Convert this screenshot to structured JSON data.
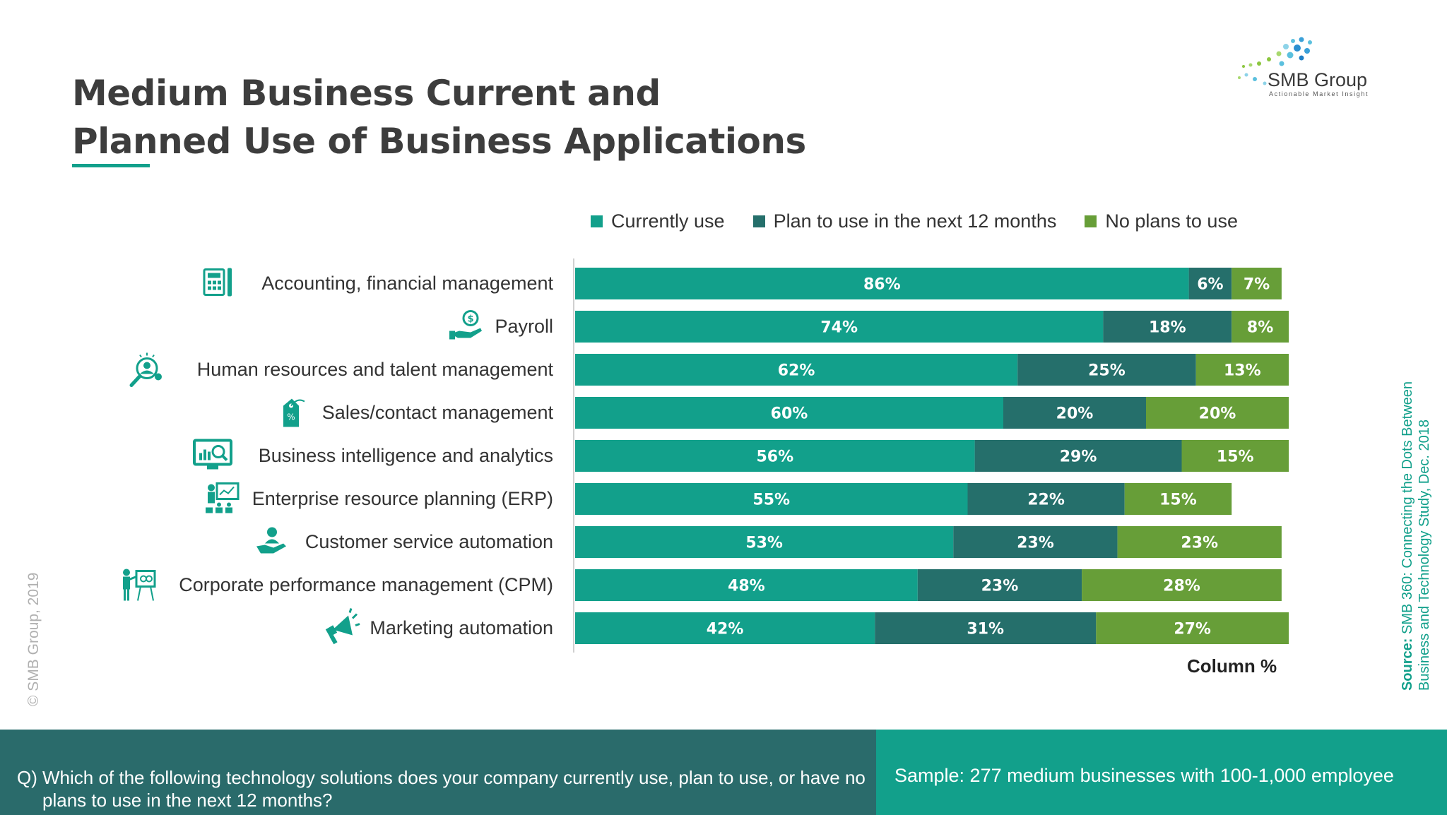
{
  "title": {
    "line1": "Medium Business Current and",
    "line2": "Planned Use of Business Applications"
  },
  "logo": {
    "name": "SMB Group",
    "tagline": "Actionable Market Insight"
  },
  "colors": {
    "currently_use": "#12a08b",
    "plan_to_use": "#256f6b",
    "no_plans": "#679e38",
    "accent": "#12a08b"
  },
  "chart_data": {
    "type": "bar",
    "orientation": "horizontal",
    "stacked": true,
    "categories": [
      "Accounting, financial management",
      "Payroll",
      "Human resources and talent management",
      "Sales/contact management",
      "Business intelligence and analytics",
      "Enterprise resource planning (ERP)",
      "Customer service automation",
      "Corporate performance management (CPM)",
      "Marketing automation"
    ],
    "series": [
      {
        "name": "Currently use",
        "values": [
          86,
          74,
          62,
          60,
          56,
          55,
          53,
          48,
          42
        ]
      },
      {
        "name": "Plan to use in the next 12 months",
        "values": [
          6,
          18,
          25,
          20,
          29,
          22,
          23,
          23,
          31
        ]
      },
      {
        "name": "No plans to use",
        "values": [
          7,
          8,
          13,
          20,
          15,
          15,
          23,
          28,
          27
        ]
      }
    ],
    "value_suffix": "%",
    "xlim": [
      0,
      100
    ],
    "xlabel": "Column %",
    "legend_position": "top",
    "grid": false,
    "icons": [
      "calculator-icon",
      "payroll-hand-icon",
      "hr-search-icon",
      "price-tag-icon",
      "analytics-monitor-icon",
      "erp-presentation-icon",
      "customer-service-icon",
      "presenter-board-icon",
      "megaphone-icon"
    ]
  },
  "copyright": "© SMB Group, 2019",
  "source": {
    "label": "Source:",
    "line1": " SMB 360: Connecting the Dots Between",
    "line2": "Business and Technology  Study, Dec. 2018"
  },
  "footer": {
    "question_prefix": "Q)",
    "question": "Which of the following technology solutions does your company currently use, plan to use, or have no plans to use in the next 12 months?",
    "sample": "Sample: 277 medium businesses with 100-1,000 employee"
  }
}
